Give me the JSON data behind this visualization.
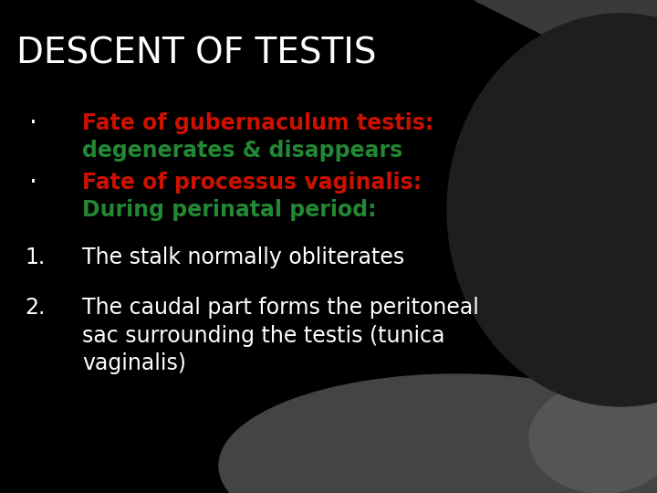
{
  "title": "DESCENT OF TESTIS",
  "title_color": "#ffffff",
  "title_fontsize": 28,
  "background_color": "#000000",
  "bg_shape_color": "#333333",
  "bg_shape2_color": "#555555",
  "bullet_lines": [
    {
      "text": "Fate of gubernaculum testis:",
      "color": "#cc1100",
      "bullet": true
    },
    {
      "text": "degenerates & disappears",
      "color": "#228833",
      "bullet": false
    },
    {
      "text": "Fate of processus vaginalis:",
      "color": "#cc1100",
      "bullet": true
    },
    {
      "text": "During perinatal period:",
      "color": "#228833",
      "bullet": false
    }
  ],
  "numbered_lines": [
    {
      "num": "1.",
      "text": "The stalk normally obliterates"
    },
    {
      "num": "2.",
      "text": "The caudal part forms the peritoneal\nsac surrounding the testis (tunica\nvaginalis)"
    }
  ],
  "text_color": "#ffffff",
  "body_fontsize": 17,
  "bullet_fontsize": 17,
  "num_fontsize": 17,
  "bullet_char": "·"
}
